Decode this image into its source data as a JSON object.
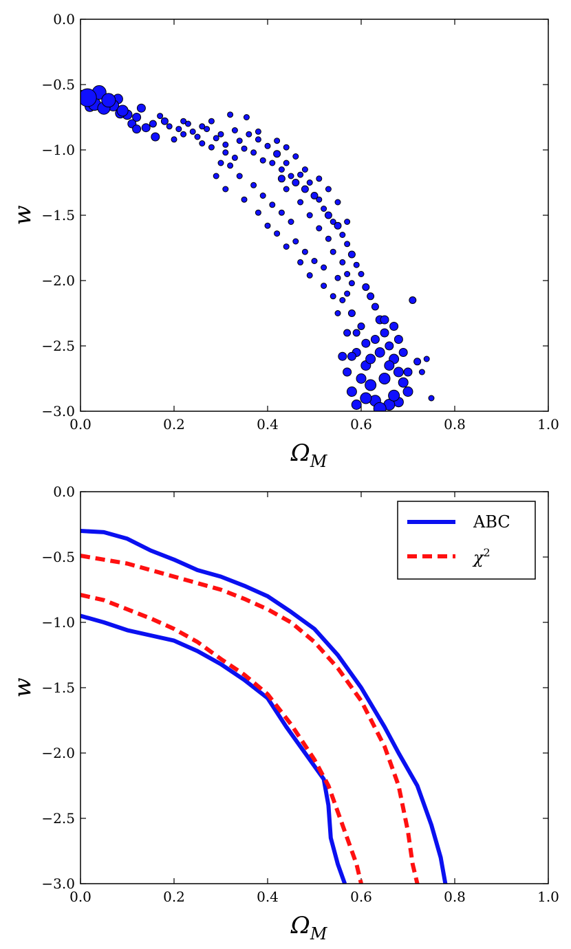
{
  "figure": {
    "panels": 2,
    "colors": {
      "scatter_fill": "#1010ff",
      "scatter_edge": "#000000",
      "abc_line": "#0a10f0",
      "chi2_line": "#ff1010"
    }
  },
  "chart_data": [
    {
      "type": "scatter",
      "title": "",
      "xlabel": "Ω",
      "xlabel_sub": "M",
      "ylabel": "w",
      "xlim": [
        0.0,
        1.0
      ],
      "ylim": [
        -3.0,
        0.0
      ],
      "xticks": [
        "0.0",
        "0.2",
        "0.4",
        "0.6",
        "0.8",
        "1.0"
      ],
      "yticks": [
        "0.0",
        "−0.5",
        "−1.0",
        "−1.5",
        "−2.0",
        "−2.5",
        "−3.0"
      ],
      "xtick_values": [
        0.0,
        0.2,
        0.4,
        0.6,
        0.8,
        1.0
      ],
      "ytick_values": [
        0.0,
        -0.5,
        -1.0,
        -1.5,
        -2.0,
        -2.5,
        -3.0
      ],
      "points": [
        [
          0.015,
          -0.6,
          13
        ],
        [
          0.04,
          -0.56,
          10
        ],
        [
          0.06,
          -0.62,
          10
        ],
        [
          0.03,
          -0.65,
          9
        ],
        [
          0.05,
          -0.68,
          9
        ],
        [
          0.07,
          -0.66,
          8
        ],
        [
          0.09,
          -0.7,
          8
        ],
        [
          0.0,
          -0.58,
          7
        ],
        [
          0.02,
          -0.67,
          7
        ],
        [
          0.08,
          -0.61,
          7
        ],
        [
          0.1,
          -0.73,
          7
        ],
        [
          0.12,
          -0.75,
          6
        ],
        [
          0.13,
          -0.68,
          6
        ],
        [
          0.11,
          -0.8,
          6
        ],
        [
          0.14,
          -0.83,
          6
        ],
        [
          0.16,
          -0.9,
          6
        ],
        [
          0.155,
          -0.8,
          5
        ],
        [
          0.18,
          -0.78,
          5
        ],
        [
          0.12,
          -0.84,
          6
        ],
        [
          0.085,
          -0.72,
          7
        ],
        [
          0.17,
          -0.74,
          4
        ],
        [
          0.19,
          -0.82,
          4
        ],
        [
          0.21,
          -0.84,
          4
        ],
        [
          0.22,
          -0.88,
          4
        ],
        [
          0.2,
          -0.92,
          4
        ],
        [
          0.23,
          -0.8,
          4
        ],
        [
          0.24,
          -0.86,
          4
        ],
        [
          0.25,
          -0.9,
          4
        ],
        [
          0.26,
          -0.95,
          4
        ],
        [
          0.27,
          -0.84,
          4
        ],
        [
          0.28,
          -0.78,
          4
        ],
        [
          0.29,
          -0.91,
          4
        ],
        [
          0.3,
          -0.88,
          4
        ],
        [
          0.31,
          -0.96,
          4
        ],
        [
          0.32,
          -0.73,
          4
        ],
        [
          0.33,
          -0.85,
          4
        ],
        [
          0.34,
          -0.93,
          4
        ],
        [
          0.35,
          -0.99,
          4
        ],
        [
          0.36,
          -0.88,
          4
        ],
        [
          0.37,
          -1.02,
          4
        ],
        [
          0.38,
          -0.92,
          4
        ],
        [
          0.39,
          -1.08,
          4
        ],
        [
          0.4,
          -0.97,
          4
        ],
        [
          0.41,
          -1.1,
          4
        ],
        [
          0.42,
          -1.03,
          5
        ],
        [
          0.43,
          -1.15,
          4
        ],
        [
          0.44,
          -1.1,
          4
        ],
        [
          0.45,
          -1.2,
          4
        ],
        [
          0.46,
          -1.25,
          5
        ],
        [
          0.47,
          -1.19,
          4
        ],
        [
          0.48,
          -1.3,
          5
        ],
        [
          0.49,
          -1.25,
          4
        ],
        [
          0.5,
          -1.35,
          5
        ],
        [
          0.51,
          -1.38,
          4
        ],
        [
          0.52,
          -1.45,
          4
        ],
        [
          0.53,
          -1.5,
          5
        ],
        [
          0.54,
          -1.55,
          4
        ],
        [
          0.55,
          -1.58,
          5
        ],
        [
          0.56,
          -1.65,
          4
        ],
        [
          0.57,
          -1.72,
          4
        ],
        [
          0.58,
          -1.8,
          5
        ],
        [
          0.59,
          -1.88,
          4
        ],
        [
          0.6,
          -1.95,
          4
        ],
        [
          0.61,
          -2.05,
          5
        ],
        [
          0.62,
          -2.12,
          5
        ],
        [
          0.63,
          -2.2,
          5
        ],
        [
          0.64,
          -2.3,
          6
        ],
        [
          0.65,
          -2.4,
          6
        ],
        [
          0.66,
          -2.5,
          6
        ],
        [
          0.67,
          -2.6,
          7
        ],
        [
          0.68,
          -2.7,
          7
        ],
        [
          0.69,
          -2.78,
          7
        ],
        [
          0.7,
          -2.85,
          7
        ],
        [
          0.71,
          -2.15,
          5
        ],
        [
          0.72,
          -2.62,
          5
        ],
        [
          0.74,
          -2.6,
          4
        ],
        [
          0.75,
          -2.9,
          4
        ],
        [
          0.73,
          -2.7,
          4
        ],
        [
          0.355,
          -0.75,
          4
        ],
        [
          0.38,
          -0.86,
          4
        ],
        [
          0.3,
          -1.1,
          4
        ],
        [
          0.32,
          -1.12,
          4
        ],
        [
          0.34,
          -1.2,
          4
        ],
        [
          0.37,
          -1.27,
          4
        ],
        [
          0.39,
          -1.35,
          4
        ],
        [
          0.41,
          -1.42,
          4
        ],
        [
          0.43,
          -1.48,
          4
        ],
        [
          0.45,
          -1.55,
          4
        ],
        [
          0.46,
          -1.7,
          4
        ],
        [
          0.48,
          -1.78,
          4
        ],
        [
          0.5,
          -1.85,
          4
        ],
        [
          0.52,
          -1.9,
          4
        ],
        [
          0.55,
          -1.98,
          4
        ],
        [
          0.57,
          -2.1,
          4
        ],
        [
          0.58,
          -2.25,
          5
        ],
        [
          0.59,
          -2.4,
          5
        ],
        [
          0.59,
          -2.55,
          6
        ],
        [
          0.61,
          -2.65,
          7
        ],
        [
          0.62,
          -2.8,
          8
        ],
        [
          0.63,
          -2.92,
          8
        ],
        [
          0.64,
          -2.98,
          9
        ],
        [
          0.66,
          -2.95,
          8
        ],
        [
          0.67,
          -2.88,
          8
        ],
        [
          0.68,
          -2.93,
          7
        ],
        [
          0.65,
          -2.75,
          8
        ],
        [
          0.66,
          -2.65,
          7
        ],
        [
          0.64,
          -2.55,
          7
        ],
        [
          0.63,
          -2.45,
          6
        ],
        [
          0.65,
          -2.3,
          6
        ],
        [
          0.67,
          -2.35,
          6
        ],
        [
          0.68,
          -2.45,
          6
        ],
        [
          0.69,
          -2.55,
          6
        ],
        [
          0.7,
          -2.7,
          6
        ],
        [
          0.6,
          -2.35,
          5
        ],
        [
          0.61,
          -2.48,
          6
        ],
        [
          0.62,
          -2.6,
          7
        ],
        [
          0.6,
          -2.75,
          7
        ],
        [
          0.61,
          -2.9,
          8
        ],
        [
          0.43,
          -1.22,
          5
        ],
        [
          0.44,
          -1.3,
          4
        ],
        [
          0.47,
          -1.4,
          4
        ],
        [
          0.49,
          -1.5,
          4
        ],
        [
          0.51,
          -1.6,
          4
        ],
        [
          0.53,
          -1.68,
          4
        ],
        [
          0.54,
          -1.78,
          4
        ],
        [
          0.56,
          -1.86,
          4
        ],
        [
          0.57,
          -1.95,
          4
        ],
        [
          0.58,
          -2.02,
          4
        ],
        [
          0.56,
          -2.15,
          4
        ],
        [
          0.57,
          -1.55,
          4
        ],
        [
          0.55,
          -1.4,
          4
        ],
        [
          0.53,
          -1.3,
          4
        ],
        [
          0.51,
          -1.22,
          4
        ],
        [
          0.48,
          -1.15,
          4
        ],
        [
          0.46,
          -1.05,
          4
        ],
        [
          0.44,
          -0.98,
          4
        ],
        [
          0.42,
          -0.93,
          4
        ],
        [
          0.22,
          -0.78,
          4
        ],
        [
          0.26,
          -0.82,
          4
        ],
        [
          0.28,
          -0.98,
          4
        ],
        [
          0.31,
          -1.02,
          4
        ],
        [
          0.33,
          -1.06,
          4
        ],
        [
          0.29,
          -1.2,
          4
        ],
        [
          0.31,
          -1.3,
          4
        ],
        [
          0.35,
          -1.38,
          4
        ],
        [
          0.38,
          -1.48,
          4
        ],
        [
          0.4,
          -1.58,
          4
        ],
        [
          0.42,
          -1.64,
          4
        ],
        [
          0.44,
          -1.74,
          4
        ],
        [
          0.47,
          -1.86,
          4
        ],
        [
          0.49,
          -1.96,
          4
        ],
        [
          0.52,
          -2.04,
          4
        ],
        [
          0.54,
          -2.12,
          4
        ],
        [
          0.55,
          -2.25,
          4
        ],
        [
          0.58,
          -2.58,
          6
        ],
        [
          0.57,
          -2.4,
          5
        ],
        [
          0.56,
          -2.58,
          6
        ],
        [
          0.57,
          -2.7,
          6
        ],
        [
          0.58,
          -2.85,
          7
        ],
        [
          0.59,
          -2.95,
          7
        ]
      ]
    },
    {
      "type": "line",
      "title": "",
      "xlabel": "Ω",
      "xlabel_sub": "M",
      "ylabel": "w",
      "xlim": [
        0.0,
        1.0
      ],
      "ylim": [
        -3.0,
        0.0
      ],
      "xticks": [
        "0.0",
        "0.2",
        "0.4",
        "0.6",
        "0.8",
        "1.0"
      ],
      "yticks": [
        "0.0",
        "−0.5",
        "−1.0",
        "−1.5",
        "−2.0",
        "−2.5",
        "−3.0"
      ],
      "xtick_values": [
        0.0,
        0.2,
        0.4,
        0.6,
        0.8,
        1.0
      ],
      "ytick_values": [
        0.0,
        -0.5,
        -1.0,
        -1.5,
        -2.0,
        -2.5,
        -3.0
      ],
      "legend": {
        "placement": "top-right",
        "entries": [
          "ABC",
          "χ"
        ],
        "chi_sup": "2"
      },
      "series": [
        {
          "name": "ABC outer",
          "legend_index": 0,
          "style": "solid",
          "points": [
            [
              0.0,
              -0.3
            ],
            [
              0.05,
              -0.31
            ],
            [
              0.1,
              -0.36
            ],
            [
              0.15,
              -0.45
            ],
            [
              0.2,
              -0.52
            ],
            [
              0.25,
              -0.6
            ],
            [
              0.3,
              -0.65
            ],
            [
              0.35,
              -0.72
            ],
            [
              0.4,
              -0.8
            ],
            [
              0.45,
              -0.92
            ],
            [
              0.5,
              -1.05
            ],
            [
              0.55,
              -1.25
            ],
            [
              0.6,
              -1.5
            ],
            [
              0.65,
              -1.8
            ],
            [
              0.68,
              -2.0
            ],
            [
              0.72,
              -2.25
            ],
            [
              0.75,
              -2.55
            ],
            [
              0.77,
              -2.8
            ],
            [
              0.78,
              -3.0
            ]
          ]
        },
        {
          "name": "ABC inner",
          "legend_index": 0,
          "style": "solid",
          "points": [
            [
              0.0,
              -0.95
            ],
            [
              0.05,
              -1.0
            ],
            [
              0.1,
              -1.06
            ],
            [
              0.15,
              -1.1
            ],
            [
              0.2,
              -1.14
            ],
            [
              0.25,
              -1.22
            ],
            [
              0.3,
              -1.32
            ],
            [
              0.35,
              -1.44
            ],
            [
              0.4,
              -1.58
            ],
            [
              0.44,
              -1.8
            ],
            [
              0.48,
              -2.0
            ],
            [
              0.52,
              -2.2
            ],
            [
              0.53,
              -2.4
            ],
            [
              0.535,
              -2.65
            ],
            [
              0.55,
              -2.85
            ],
            [
              0.565,
              -3.0
            ]
          ]
        },
        {
          "name": "χ2 outer",
          "legend_index": 1,
          "style": "dashed",
          "points": [
            [
              0.0,
              -0.49
            ],
            [
              0.05,
              -0.52
            ],
            [
              0.1,
              -0.55
            ],
            [
              0.15,
              -0.6
            ],
            [
              0.2,
              -0.65
            ],
            [
              0.25,
              -0.7
            ],
            [
              0.3,
              -0.75
            ],
            [
              0.35,
              -0.82
            ],
            [
              0.4,
              -0.9
            ],
            [
              0.45,
              -1.0
            ],
            [
              0.5,
              -1.15
            ],
            [
              0.55,
              -1.35
            ],
            [
              0.6,
              -1.6
            ],
            [
              0.65,
              -1.95
            ],
            [
              0.68,
              -2.25
            ],
            [
              0.7,
              -2.6
            ],
            [
              0.71,
              -2.85
            ],
            [
              0.72,
              -3.0
            ]
          ]
        },
        {
          "name": "χ2 inner",
          "legend_index": 1,
          "style": "dashed",
          "points": [
            [
              0.0,
              -0.79
            ],
            [
              0.05,
              -0.83
            ],
            [
              0.1,
              -0.9
            ],
            [
              0.15,
              -0.97
            ],
            [
              0.2,
              -1.05
            ],
            [
              0.25,
              -1.15
            ],
            [
              0.3,
              -1.28
            ],
            [
              0.35,
              -1.4
            ],
            [
              0.4,
              -1.55
            ],
            [
              0.45,
              -1.78
            ],
            [
              0.5,
              -2.05
            ],
            [
              0.53,
              -2.25
            ],
            [
              0.55,
              -2.45
            ],
            [
              0.57,
              -2.65
            ],
            [
              0.59,
              -2.85
            ],
            [
              0.6,
              -3.0
            ]
          ]
        }
      ]
    }
  ]
}
